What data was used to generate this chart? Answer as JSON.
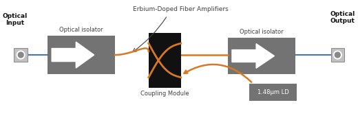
{
  "bg_color": "#ffffff",
  "box_color": "#737373",
  "arrow_color": "#D97820",
  "line_color": "#4472C4",
  "coupling_box_color": "#111111",
  "ld_box_color": "#737373",
  "white": "#ffffff",
  "text_color": "#404040",
  "labels": {
    "optical_input": "Optical\nInput",
    "optical_output": "Optical\nOutput",
    "isolator1": "Optical isolator",
    "isolator2": "Optical isolator",
    "edfa": "Erbium-Doped Fiber Amplifiers",
    "coupling": "Coupling Module",
    "ld": "1.48μm LD"
  }
}
